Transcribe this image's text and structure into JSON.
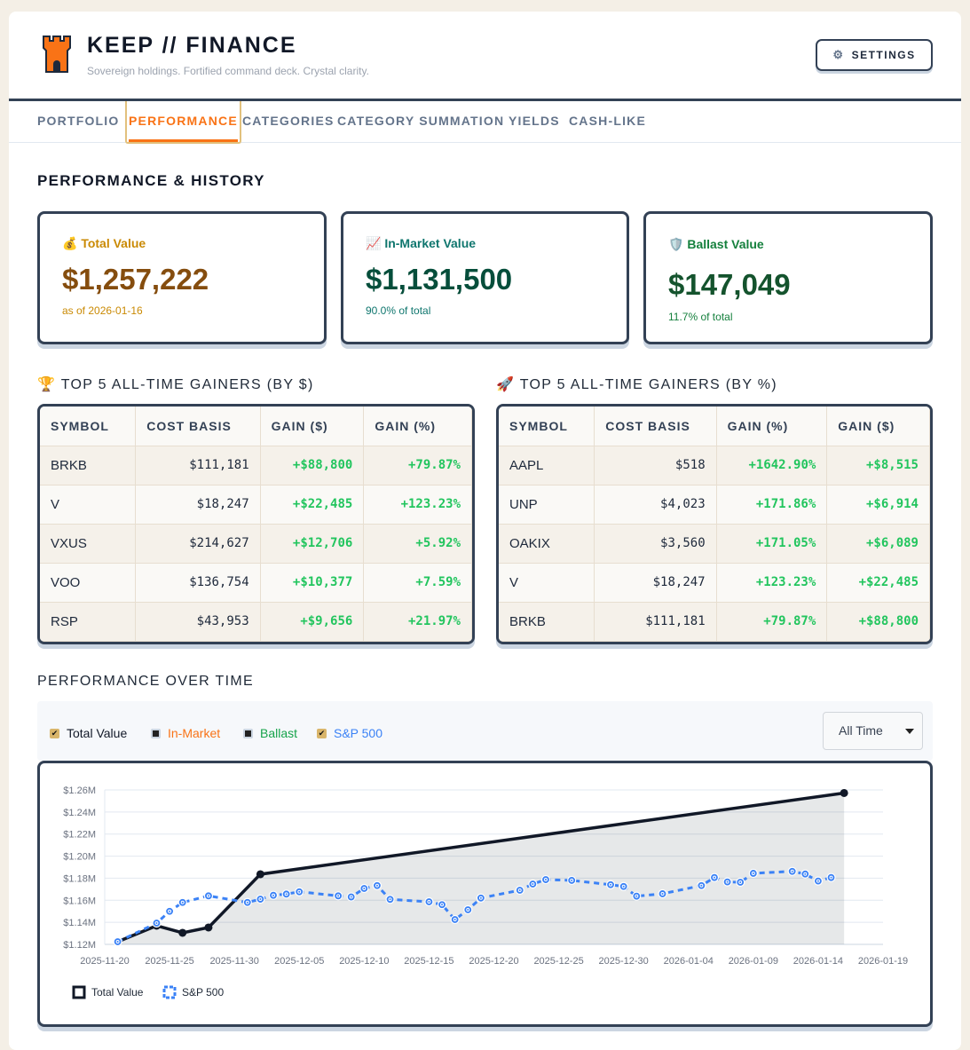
{
  "header": {
    "title": "KEEP // FINANCE",
    "subtitle": "Sovereign holdings. Fortified command deck. Crystal clarity.",
    "settings_label": "SETTINGS",
    "settings_icon": "gear-icon",
    "logo_icon": "castle-tower-icon"
  },
  "nav": {
    "tabs": [
      "PORTFOLIO",
      "PERFORMANCE",
      "CATEGORIES",
      "CATEGORY SUMMATION",
      "YIELDS",
      "CASH-LIKE"
    ],
    "active": "PERFORMANCE"
  },
  "page_title": "PERFORMANCE & HISTORY",
  "cards": [
    {
      "icon": "💰",
      "label": "Total Value",
      "value": "$1,257,222",
      "note": "as of 2026-01-16"
    },
    {
      "icon": "📈",
      "label": "In-Market Value",
      "value": "$1,131,500",
      "note": "90.0% of total"
    },
    {
      "icon": "🛡️",
      "label": "Ballast Value",
      "value": "$147,049",
      "note": "11.7% of total"
    }
  ],
  "gainers_dollar": {
    "icon": "🏆",
    "title": "TOP 5 ALL-TIME GAINERS (BY $)",
    "columns": [
      "SYMBOL",
      "COST BASIS",
      "GAIN ($)",
      "GAIN (%)"
    ],
    "rows": [
      [
        "BRKB",
        "$111,181",
        "+$88,800",
        "+79.87%"
      ],
      [
        "V",
        "$18,247",
        "+$22,485",
        "+123.23%"
      ],
      [
        "VXUS",
        "$214,627",
        "+$12,706",
        "+5.92%"
      ],
      [
        "VOO",
        "$136,754",
        "+$10,377",
        "+7.59%"
      ],
      [
        "RSP",
        "$43,953",
        "+$9,656",
        "+21.97%"
      ]
    ]
  },
  "gainers_pct": {
    "icon": "🚀",
    "title": "TOP 5 ALL-TIME GAINERS (BY %)",
    "columns": [
      "SYMBOL",
      "COST BASIS",
      "GAIN (%)",
      "GAIN ($)"
    ],
    "rows": [
      [
        "AAPL",
        "$518",
        "+1642.90%",
        "+$8,515"
      ],
      [
        "UNP",
        "$4,023",
        "+171.86%",
        "+$6,914"
      ],
      [
        "OAKIX",
        "$3,560",
        "+171.05%",
        "+$6,089"
      ],
      [
        "V",
        "$18,247",
        "+123.23%",
        "+$22,485"
      ],
      [
        "BRKB",
        "$111,181",
        "+79.87%",
        "+$88,800"
      ]
    ]
  },
  "perf_title": "PERFORMANCE OVER TIME",
  "toggles": [
    {
      "label": "Total Value",
      "checked": true,
      "color": "#111827"
    },
    {
      "label": "In-Market",
      "checked": false,
      "color": "#f97316"
    },
    {
      "label": "Ballast",
      "checked": false,
      "color": "#16a34a"
    },
    {
      "label": "S&P 500",
      "checked": true,
      "color": "#3b82f6"
    }
  ],
  "range_select": "All Time",
  "chart_data": {
    "type": "line",
    "ylim": [
      1.12,
      1.26
    ],
    "y_ticks": [
      "$1.12M",
      "$1.14M",
      "$1.16M",
      "$1.18M",
      "$1.20M",
      "$1.22M",
      "$1.24M",
      "$1.26M"
    ],
    "xlim": [
      "2025-11-20",
      "2026-01-19"
    ],
    "x_ticks": [
      "2025-11-20",
      "2025-11-25",
      "2025-11-30",
      "2025-12-05",
      "2025-12-10",
      "2025-12-15",
      "2025-12-20",
      "2025-12-25",
      "2025-12-30",
      "2026-01-04",
      "2026-01-09",
      "2026-01-14",
      "2026-01-19"
    ],
    "grid": true,
    "legend": "bottom-left",
    "series": [
      {
        "name": "Total Value",
        "color": "#111827",
        "fill": true,
        "dashed": false,
        "points": [
          [
            "2025-11-21",
            1.1224
          ],
          [
            "2025-11-24",
            1.1369
          ],
          [
            "2025-11-26",
            1.1305
          ],
          [
            "2025-11-28",
            1.1353
          ],
          [
            "2025-12-02",
            1.1836
          ],
          [
            "2026-01-16",
            1.2572
          ]
        ]
      },
      {
        "name": "S&P 500",
        "color": "#3b82f6",
        "fill": false,
        "dashed": true,
        "points": [
          [
            "2025-11-21",
            1.1224
          ],
          [
            "2025-11-24",
            1.1393
          ],
          [
            "2025-11-25",
            1.15
          ],
          [
            "2025-11-26",
            1.158
          ],
          [
            "2025-11-28",
            1.164
          ],
          [
            "2025-12-01",
            1.158
          ],
          [
            "2025-12-02",
            1.161
          ],
          [
            "2025-12-03",
            1.1645
          ],
          [
            "2025-12-04",
            1.1656
          ],
          [
            "2025-12-05",
            1.1677
          ],
          [
            "2025-12-08",
            1.164
          ],
          [
            "2025-12-09",
            1.163
          ],
          [
            "2025-12-10",
            1.1707
          ],
          [
            "2025-12-11",
            1.1733
          ],
          [
            "2025-12-12",
            1.1608
          ],
          [
            "2025-12-15",
            1.1586
          ],
          [
            "2025-12-16",
            1.156
          ],
          [
            "2025-12-17",
            1.1425
          ],
          [
            "2025-12-18",
            1.1514
          ],
          [
            "2025-12-19",
            1.162
          ],
          [
            "2025-12-22",
            1.1691
          ],
          [
            "2025-12-23",
            1.1747
          ],
          [
            "2025-12-24",
            1.1787
          ],
          [
            "2025-12-26",
            1.178
          ],
          [
            "2025-12-29",
            1.1741
          ],
          [
            "2025-12-30",
            1.1725
          ],
          [
            "2025-12-31",
            1.1637
          ],
          [
            "2026-01-02",
            1.1659
          ],
          [
            "2026-01-05",
            1.1733
          ],
          [
            "2026-01-06",
            1.1806
          ],
          [
            "2026-01-07",
            1.1766
          ],
          [
            "2026-01-08",
            1.1763
          ],
          [
            "2026-01-09",
            1.1844
          ],
          [
            "2026-01-12",
            1.1862
          ],
          [
            "2026-01-13",
            1.1838
          ],
          [
            "2026-01-14",
            1.1774
          ],
          [
            "2026-01-15",
            1.1806
          ]
        ]
      }
    ]
  }
}
